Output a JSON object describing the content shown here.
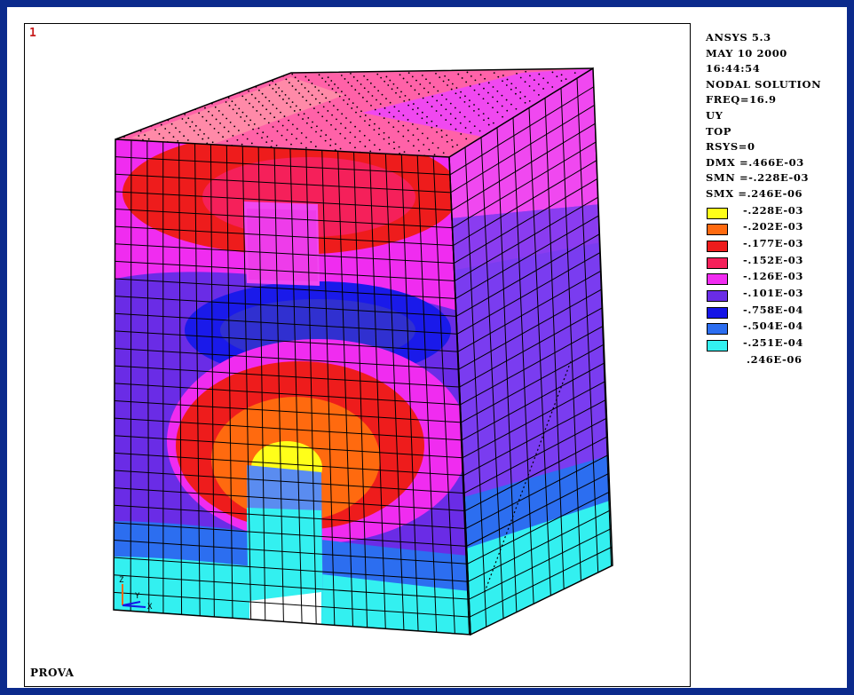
{
  "window": {
    "number": "1",
    "model_title": "PROVA"
  },
  "info": {
    "lines": [
      "ANSYS 5.3",
      "MAY 10 2000",
      "16:44:54",
      "NODAL SOLUTION",
      "FREQ=16.9",
      "UY",
      "TOP",
      "RSYS=0",
      "DMX =.466E-03",
      "SMN =-.228E-03",
      "SMX =.246E-06"
    ]
  },
  "legend": {
    "entries": [
      {
        "value": "-.228E-03",
        "color": "#ffff19"
      },
      {
        "value": "-.202E-03",
        "color": "#ff6a0f"
      },
      {
        "value": "-.177E-03",
        "color": "#ee1c1c"
      },
      {
        "value": "-.152E-03",
        "color": "#f5205a"
      },
      {
        "value": "-.126E-03",
        "color": "#f02cf0"
      },
      {
        "value": "-.101E-03",
        "color": "#6a2ce6"
      },
      {
        "value": "-.758E-04",
        "color": "#1515e6"
      },
      {
        "value": "-.504E-04",
        "color": "#2c6ef0"
      },
      {
        "value": "-.251E-04",
        "color": "#33f0f0"
      }
    ],
    "max_label": ".246E-06"
  },
  "triad": {
    "y_label": "Y",
    "z_label": "Z",
    "x_label": "X"
  },
  "colors": {
    "background": "#0b2a8c",
    "top_face": "#ff5aa0",
    "side_face": "#7a3cf0"
  }
}
